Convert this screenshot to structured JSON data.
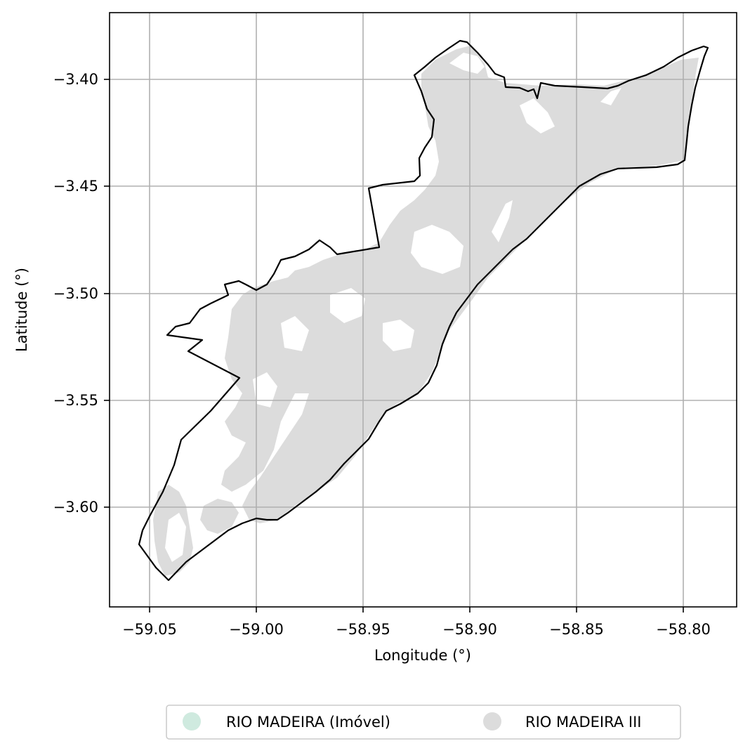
{
  "chart_data": {
    "type": "map",
    "title": "",
    "xlabel": "Longitude (°)",
    "ylabel": "Latitude (°)",
    "xlim": [
      -59.067,
      -58.774
    ],
    "ylim": [
      -3.647,
      -3.369
    ],
    "xticks": [
      -59.05,
      -59.0,
      -58.95,
      -58.9,
      -58.85,
      -58.8
    ],
    "xtick_labels": [
      "−59.05",
      "−59.00",
      "−58.95",
      "−58.90",
      "−58.85",
      "−58.80"
    ],
    "yticks": [
      -3.4,
      -3.45,
      -3.5,
      -3.55,
      -3.6
    ],
    "ytick_labels": [
      "−3.40",
      "−3.45",
      "−3.50",
      "−3.55",
      "−3.60"
    ],
    "grid": true,
    "legend_position": "bottom-center",
    "legend": [
      {
        "label": "RIO MADEIRA (Imóvel)",
        "color": "#cfeadf"
      },
      {
        "label": "RIO MADEIRA III",
        "color": "#dcdcdc"
      }
    ],
    "boundary_color": "#000000",
    "fill_color": "#dcdcdc"
  }
}
